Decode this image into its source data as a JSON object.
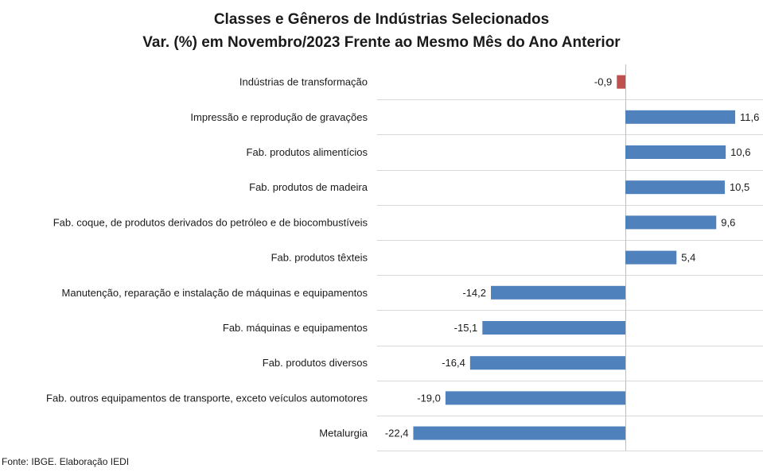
{
  "chart_data": {
    "type": "bar",
    "orientation": "horizontal",
    "title": "Classes e Gêneros de Indústrias Selecionados",
    "subtitle": "Var. (%) em Novembro/2023 Frente ao Mesmo Mês do Ano Anterior",
    "categories": [
      "Indústrias de transformação",
      "Impressão e reprodução de gravações",
      "Fab. produtos alimentícios",
      "Fab. produtos de madeira",
      "Fab. coque, de produtos derivados do petróleo e de biocombustíveis",
      "Fab. produtos têxteis",
      "Manutenção, reparação e instalação de máquinas e equipamentos",
      "Fab. máquinas e equipamentos",
      "Fab. produtos diversos",
      "Fab. outros equipamentos de transporte, exceto veículos automotores",
      "Metalurgia"
    ],
    "values": [
      -0.9,
      11.6,
      10.6,
      10.5,
      9.6,
      5.4,
      -14.2,
      -15.1,
      -16.4,
      -19.0,
      -22.4
    ],
    "data_labels": [
      "-0,9",
      "11,6",
      "10,6",
      "10,5",
      "9,6",
      "5,4",
      "-14,2",
      "-15,1",
      "-16,4",
      "-19,0",
      "-22,4"
    ],
    "bar_colors": [
      "#c0504d",
      "#4f81bd",
      "#4f81bd",
      "#4f81bd",
      "#4f81bd",
      "#4f81bd",
      "#4f81bd",
      "#4f81bd",
      "#4f81bd",
      "#4f81bd",
      "#4f81bd"
    ],
    "grid": true,
    "legend": "none"
  },
  "source": "Fonte: IBGE. Elaboração IEDI"
}
